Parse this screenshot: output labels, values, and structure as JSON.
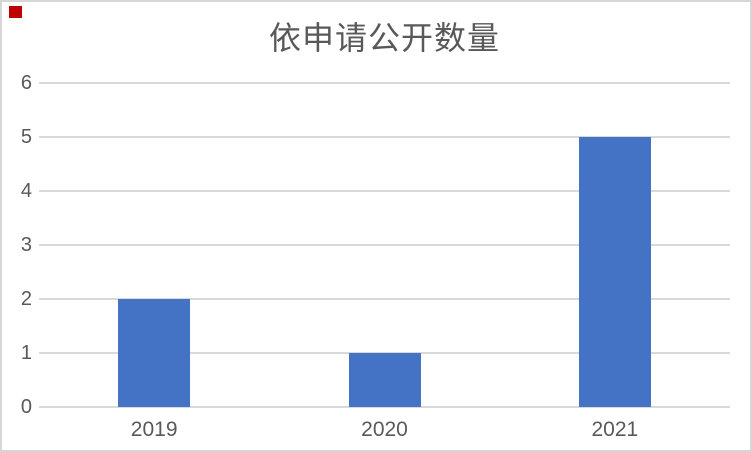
{
  "ui": {
    "corner_marker_color": "#C00000"
  },
  "chart_data": {
    "type": "bar",
    "title": "依申请公开数量",
    "categories": [
      "2019",
      "2020",
      "2021"
    ],
    "values": [
      2,
      1,
      5
    ],
    "xlabel": "",
    "ylabel": "",
    "ylim": [
      0,
      6
    ],
    "yticks": [
      0,
      1,
      2,
      3,
      4,
      5,
      6
    ],
    "grid": "horizontal",
    "legend_position": "none",
    "colors": {
      "bar": "#4472C4",
      "gridline": "#D9D9D9",
      "tick_label": "#595959",
      "title": "#595959",
      "frame_border": "#D6D6D6"
    }
  }
}
